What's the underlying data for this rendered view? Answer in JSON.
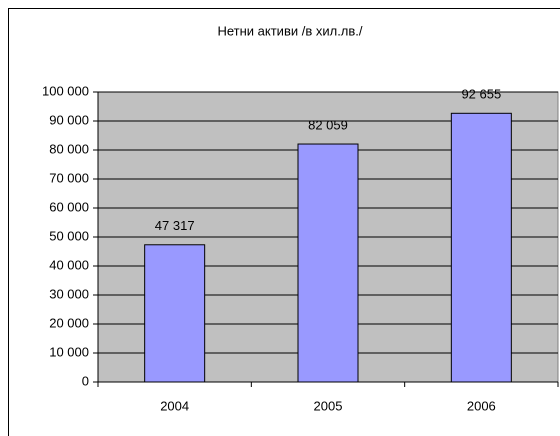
{
  "chart_data": {
    "type": "bar",
    "title": "Нетни активи /в хил.лв./",
    "categories": [
      "2004",
      "2005",
      "2006"
    ],
    "values": [
      47317,
      82059,
      92655
    ],
    "value_labels": [
      "47 317",
      "82 059",
      "92 655"
    ],
    "color": "#9999ff",
    "ylim": [
      0,
      100000
    ],
    "yticks": [
      0,
      {
        "value": 10000,
        "label": "10 000"
      },
      {
        "value": 20000,
        "label": "20 000"
      },
      {
        "value": 30000,
        "label": "30 000"
      },
      {
        "value": 40000,
        "label": "40 000"
      },
      {
        "value": 50000,
        "label": "50 000"
      },
      {
        "value": 60000,
        "label": "60 000"
      },
      {
        "value": 70000,
        "label": "70 000"
      },
      {
        "value": 80000,
        "label": "80 000"
      },
      {
        "value": 90000,
        "label": "90 000"
      },
      {
        "value": 100000,
        "label": "100 000"
      }
    ],
    "grid": true
  }
}
